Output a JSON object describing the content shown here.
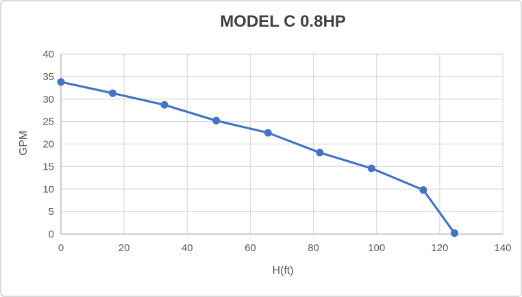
{
  "chart": {
    "title": "MODEL C 0.8HP",
    "x_axis_title": "H(ft)",
    "y_axis_title": "GPM"
  },
  "chart_data": {
    "type": "line",
    "title": "MODEL C 0.8HP",
    "xlabel": "H(ft)",
    "ylabel": "GPM",
    "x": [
      0,
      16.4,
      32.8,
      49.2,
      65.6,
      82.0,
      98.4,
      114.8,
      124.7
    ],
    "y": [
      33.8,
      31.3,
      28.7,
      25.2,
      22.5,
      18.1,
      14.6,
      9.8,
      0.2
    ],
    "xlim": [
      0,
      140
    ],
    "ylim": [
      0,
      40
    ],
    "x_ticks": [
      0,
      20,
      40,
      60,
      80,
      100,
      120,
      140
    ],
    "y_ticks": [
      0,
      5,
      10,
      15,
      20,
      25,
      30,
      35,
      40
    ],
    "grid": true,
    "legend_position": "none",
    "marker": "circle",
    "colors": {
      "series": "#4472C4",
      "gridline": "#D9D9D9",
      "axis_line": "#BFBFBF",
      "tick_label": "#595959",
      "title": "#404040",
      "background": "#FFFFFF",
      "frame_border": "#D9D9D9"
    }
  }
}
